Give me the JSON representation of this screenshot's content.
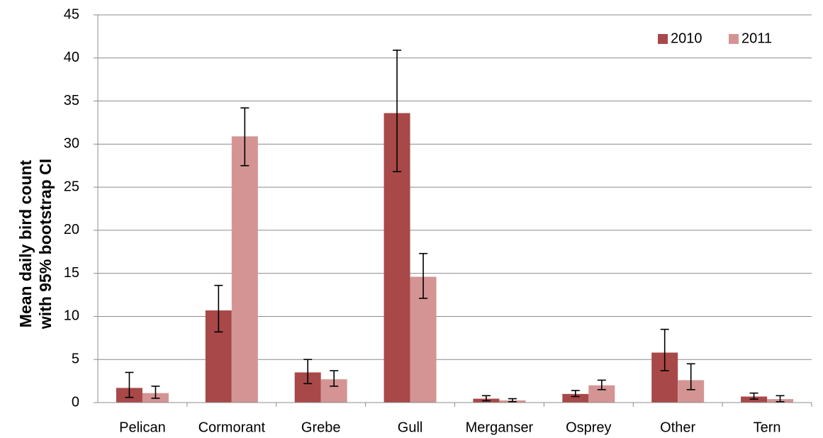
{
  "chart_data": {
    "type": "bar",
    "y_label": [
      "Mean daily bird count",
      "with 95% bootstrap CI"
    ],
    "categories": [
      "Pelican",
      "Cormorant",
      "Grebe",
      "Gull",
      "Merganser",
      "Osprey",
      "Other",
      "Tern"
    ],
    "series": [
      {
        "name": "2010",
        "color": "#a84848",
        "values": [
          1.7,
          10.7,
          3.5,
          33.6,
          0.45,
          1.0,
          5.8,
          0.7
        ],
        "ci_low": [
          0.6,
          8.2,
          2.2,
          26.8,
          0.2,
          0.7,
          3.7,
          0.4
        ],
        "ci_high": [
          3.5,
          13.6,
          5.0,
          40.9,
          0.8,
          1.4,
          8.5,
          1.1
        ]
      },
      {
        "name": "2011",
        "color": "#d49494",
        "values": [
          1.1,
          30.9,
          2.7,
          14.6,
          0.25,
          2.0,
          2.6,
          0.4
        ],
        "ci_low": [
          0.5,
          27.5,
          1.9,
          12.1,
          0.1,
          1.5,
          1.5,
          0.1
        ],
        "ci_high": [
          1.9,
          34.2,
          3.7,
          17.3,
          0.45,
          2.6,
          4.5,
          0.8
        ]
      }
    ],
    "ylim": [
      0,
      45
    ],
    "yticks": [
      0,
      5,
      10,
      15,
      20,
      25,
      30,
      35,
      40,
      45
    ],
    "grid": true,
    "legend": "upper right"
  }
}
